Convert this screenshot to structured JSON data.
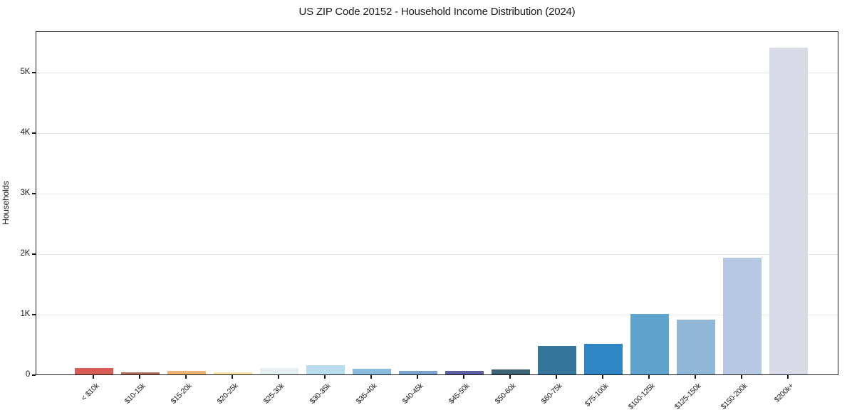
{
  "chart_data": {
    "type": "bar",
    "title": "US ZIP Code 20152 - Household Income Distribution (2024)",
    "xlabel": "",
    "ylabel": "Households",
    "categories": [
      "< $10k",
      "$10-15k",
      "$15-20k",
      "$20-25k",
      "$25-30k",
      "$30-35k",
      "$35-40k",
      "$40-45k",
      "$45-50k",
      "$50-60k",
      "$60-75k",
      "$75-100k",
      "$100-125k",
      "$125-150k",
      "$150-200k",
      "$200k+"
    ],
    "values": [
      105,
      30,
      60,
      35,
      110,
      150,
      90,
      55,
      60,
      80,
      470,
      510,
      1000,
      900,
      1930,
      5400
    ],
    "bar_colors": [
      "#d65c55",
      "#b4705f",
      "#edb274",
      "#f9e2a4",
      "#e4f0f2",
      "#b8dded",
      "#8cbcdc",
      "#7aa2cc",
      "#5c5f9f",
      "#3d6377",
      "#36759b",
      "#3085c5",
      "#5ea4cd",
      "#92b8d8",
      "#b7c8e2",
      "#d9dae8"
    ],
    "ytick_labels": [
      "0",
      "1K",
      "2K",
      "3K",
      "4K",
      "5K"
    ],
    "ytick_values": [
      0,
      1000,
      2000,
      3000,
      4000,
      5000
    ],
    "ylim": [
      0,
      5680
    ],
    "grid": "horizontal",
    "legend": "none",
    "background_color": "#ffffff",
    "frame_color": "#1a1a1a",
    "gridline_color": "#e7e7e7"
  }
}
